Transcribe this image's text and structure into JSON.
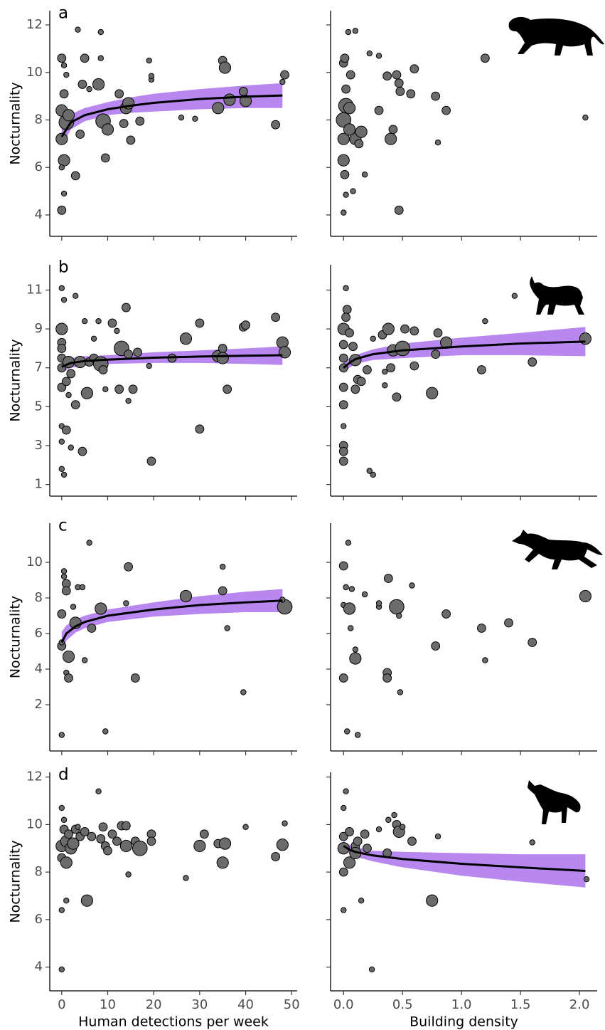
{
  "chart_data": [
    {
      "type": "scatter",
      "panel_label": "a",
      "ylabel": "Nocturnality",
      "xlim": [
        -2.6,
        51.2
      ],
      "ylim": [
        3.1,
        12.6
      ],
      "xticks": [
        0,
        10,
        20,
        30,
        40,
        50
      ],
      "yticks": [
        4,
        6,
        8,
        10,
        12
      ],
      "color": "#6b6b6b",
      "x": [
        0,
        0,
        0,
        0.5,
        0.5,
        0,
        1,
        0.5,
        0,
        0.5,
        1.5,
        1,
        3,
        3.5,
        4,
        4.5,
        5,
        6,
        8,
        8.5,
        8.5,
        9,
        10,
        9.5,
        12.5,
        13.5,
        14,
        14.5,
        15,
        17,
        19,
        19.5,
        19.5,
        26,
        29,
        34,
        35,
        35.5,
        36.5,
        39.5,
        40,
        46.5,
        48.5,
        48
      ],
      "values": [
        7.2,
        4.2,
        10.6,
        10.3,
        9.1,
        8.4,
        7.9,
        6.3,
        6.0,
        4.9,
        8.2,
        9.9,
        5.65,
        11.8,
        7.4,
        9.5,
        10.6,
        9.3,
        9.5,
        11.7,
        10.6,
        7.95,
        7.6,
        6.4,
        9.1,
        7.85,
        8.5,
        8.7,
        7.15,
        7.95,
        10.5,
        9.7,
        9.85,
        8.1,
        8.05,
        8.5,
        10.5,
        10.2,
        8.85,
        9.2,
        8.8,
        7.8,
        9.9,
        9.6
      ],
      "sizes": [
        3,
        2,
        2,
        1,
        2,
        3,
        4,
        3,
        1,
        1,
        3,
        1,
        2,
        1,
        2,
        2,
        2,
        1,
        3,
        1,
        1,
        4,
        3,
        2,
        2,
        2,
        3,
        3,
        2,
        2,
        1,
        1,
        1,
        1,
        1,
        3,
        2,
        3,
        3,
        2,
        3,
        2,
        2,
        1
      ],
      "fit": {
        "line_color": "#000000",
        "band_color": "#b987f0",
        "x": [
          0,
          2,
          5,
          10,
          15,
          20,
          30,
          40,
          48
        ],
        "y": [
          7.3,
          7.9,
          8.2,
          8.45,
          8.6,
          8.72,
          8.88,
          8.98,
          9.03
        ],
        "lower": [
          6.9,
          7.6,
          7.95,
          8.2,
          8.3,
          8.35,
          8.45,
          8.5,
          8.5
        ],
        "upper": [
          7.8,
          8.25,
          8.5,
          8.75,
          8.95,
          9.1,
          9.3,
          9.45,
          9.55
        ]
      }
    },
    {
      "type": "scatter",
      "xlim": [
        -0.11,
        2.15
      ],
      "ylim": [
        3.1,
        12.6
      ],
      "xticks": [
        0,
        0.5,
        1,
        1.5,
        2
      ],
      "yticks": [
        4,
        6,
        8,
        10,
        12
      ],
      "color": "#6b6b6b",
      "x": [
        0,
        0,
        0.02,
        0.05,
        0,
        0.01,
        0,
        0.02,
        0.01,
        0,
        0.04,
        0.1,
        0.06,
        0.1,
        0.13,
        0.15,
        0.08,
        0.18,
        0.22,
        0.3,
        0.3,
        0.37,
        0.4,
        0.42,
        0.45,
        0.47,
        0.48,
        0.47,
        0.57,
        0.6,
        0.78,
        0.8,
        0.87,
        1.2,
        2.05,
        0.02,
        0.05
      ],
      "values": [
        7.2,
        8.0,
        8.6,
        8.5,
        10.4,
        10.6,
        6.3,
        4.85,
        5.7,
        4.1,
        11.7,
        11.75,
        9.9,
        7.2,
        7.0,
        7.5,
        5.0,
        5.7,
        10.8,
        8.4,
        10.7,
        9.85,
        7.2,
        7.6,
        9.9,
        9.55,
        9.2,
        4.2,
        9.1,
        10.15,
        9.0,
        7.05,
        8.4,
        10.6,
        8.1,
        9.3,
        7.6
      ],
      "sizes": [
        3,
        4,
        4,
        3,
        2,
        2,
        3,
        1,
        2,
        1,
        1,
        1,
        2,
        3,
        2,
        3,
        1,
        1,
        1,
        2,
        1,
        2,
        3,
        2,
        2,
        2,
        2,
        2,
        2,
        2,
        2,
        1,
        2,
        2,
        1,
        2,
        3
      ]
    },
    {
      "type": "scatter",
      "panel_label": "b",
      "ylabel": "Nocturnality",
      "xlim": [
        -2.6,
        51.2
      ],
      "ylim": [
        0.4,
        12.3
      ],
      "xticks": [
        0,
        10,
        20,
        30,
        40,
        50
      ],
      "yticks": [
        1,
        3,
        5,
        7,
        9,
        11
      ],
      "color": "#6b6b6b",
      "x": [
        0,
        0,
        0,
        0,
        0,
        0,
        0,
        0,
        0,
        0.5,
        0,
        0.5,
        1,
        1,
        1.5,
        1.5,
        2,
        2,
        3,
        3,
        4,
        4.5,
        5,
        5.5,
        6,
        7,
        7,
        8,
        8.5,
        9,
        9.5,
        11,
        12,
        12.5,
        13,
        14,
        14.5,
        14.5,
        15.5,
        16.5,
        19,
        19.5,
        24,
        27,
        30,
        30,
        34,
        35,
        35,
        36,
        39.5,
        40,
        46.5,
        48,
        48.5
      ],
      "values": [
        9.0,
        8.3,
        8.0,
        7.5,
        7.0,
        6.0,
        4.0,
        3.2,
        1.8,
        1.5,
        11.1,
        10.5,
        6.3,
        3.8,
        5.6,
        7.3,
        6.7,
        2.9,
        10.7,
        5.1,
        7.3,
        2.7,
        9.4,
        5.7,
        7.3,
        8.5,
        7.5,
        9.4,
        7.2,
        6.9,
        5.9,
        9.3,
        8.9,
        5.9,
        8.0,
        10.1,
        7.7,
        5.3,
        5.9,
        7.8,
        7.1,
        2.2,
        7.5,
        8.5,
        9.3,
        3.85,
        7.6,
        8.0,
        7.5,
        5.9,
        9.1,
        9.2,
        9.6,
        8.3,
        7.8
      ],
      "sizes": [
        3,
        2,
        2,
        2,
        2,
        2,
        1,
        1,
        1,
        1,
        1,
        1,
        2,
        2,
        1,
        3,
        2,
        1,
        1,
        2,
        3,
        2,
        1,
        3,
        2,
        1,
        2,
        1,
        4,
        2,
        1,
        2,
        1,
        2,
        4,
        2,
        2,
        1,
        2,
        2,
        1,
        2,
        2,
        3,
        2,
        2,
        3,
        2,
        3,
        2,
        2,
        2,
        2,
        3,
        3
      ],
      "fit": {
        "line_color": "#000000",
        "band_color": "#b987f0",
        "x": [
          0,
          2,
          5,
          10,
          20,
          30,
          40,
          48
        ],
        "y": [
          7.05,
          7.25,
          7.35,
          7.42,
          7.52,
          7.58,
          7.62,
          7.65
        ],
        "lower": [
          6.75,
          7.0,
          7.1,
          7.2,
          7.25,
          7.25,
          7.2,
          7.15
        ],
        "upper": [
          7.4,
          7.5,
          7.6,
          7.65,
          7.8,
          7.9,
          8.0,
          8.1
        ]
      }
    },
    {
      "type": "scatter",
      "xlim": [
        -0.11,
        2.15
      ],
      "ylim": [
        0.4,
        12.3
      ],
      "xticks": [
        0,
        0.5,
        1,
        1.5,
        2
      ],
      "yticks": [
        1,
        3,
        5,
        7,
        9,
        11
      ],
      "color": "#6b6b6b",
      "x": [
        0,
        0,
        0,
        0,
        0,
        0,
        0,
        0,
        0,
        0,
        0.02,
        0.03,
        0.02,
        0.05,
        0.08,
        0.1,
        0.12,
        0.15,
        0.1,
        0.2,
        0.22,
        0.25,
        0.25,
        0.33,
        0.35,
        0.35,
        0.38,
        0.4,
        0.42,
        0.45,
        0.5,
        0.52,
        0.6,
        0.6,
        0.75,
        0.78,
        0.8,
        0.87,
        1.17,
        1.2,
        1.45,
        1.6,
        2.05
      ],
      "values": [
        9.0,
        8.2,
        7.5,
        7.0,
        6.0,
        5.1,
        4.0,
        3.0,
        2.7,
        2.2,
        11.1,
        10.0,
        9.6,
        8.8,
        8.1,
        7.4,
        6.4,
        6.3,
        5.9,
        6.9,
        1.7,
        1.5,
        8.5,
        8.7,
        6.8,
        6.1,
        9.0,
        7.0,
        7.9,
        5.5,
        8.0,
        9.0,
        8.9,
        7.1,
        5.7,
        7.7,
        8.8,
        8.3,
        6.9,
        9.4,
        10.7,
        7.3,
        8.5
      ],
      "sizes": [
        3,
        2,
        2,
        2,
        2,
        2,
        1,
        2,
        2,
        2,
        1,
        2,
        2,
        2,
        2,
        3,
        2,
        2,
        2,
        2,
        1,
        1,
        1,
        2,
        1,
        1,
        3,
        2,
        3,
        2,
        4,
        2,
        2,
        2,
        3,
        2,
        2,
        3,
        2,
        1,
        1,
        2,
        3
      ],
      "fit": {
        "line_color": "#000000",
        "band_color": "#b987f0",
        "x": [
          0,
          0.05,
          0.1,
          0.25,
          0.5,
          1,
          1.5,
          2.05
        ],
        "y": [
          7.0,
          7.25,
          7.45,
          7.7,
          7.9,
          8.1,
          8.25,
          8.35
        ],
        "lower": [
          6.7,
          7.0,
          7.2,
          7.4,
          7.5,
          7.65,
          7.65,
          7.6
        ],
        "upper": [
          7.3,
          7.5,
          7.65,
          7.95,
          8.25,
          8.55,
          8.8,
          9.1
        ]
      }
    },
    {
      "type": "scatter",
      "panel_label": "c",
      "ylabel": "Nocturnality",
      "xlim": [
        -2.6,
        51.2
      ],
      "ylim": [
        -0.6,
        12.2
      ],
      "xticks": [
        0,
        10,
        20,
        30,
        40,
        50
      ],
      "yticks": [
        2,
        4,
        6,
        8,
        10
      ],
      "color": "#6b6b6b",
      "x": [
        0,
        0,
        0,
        0,
        0.5,
        0.5,
        1,
        1,
        1.5,
        1.5,
        1,
        2.5,
        3,
        3.5,
        4.5,
        5,
        6,
        6.5,
        8.5,
        9.5,
        14,
        14.5,
        16,
        27,
        35,
        35,
        36,
        39.5,
        48.5,
        48
      ],
      "values": [
        5.3,
        5.5,
        7.1,
        0.3,
        9.5,
        9.2,
        8.8,
        3.8,
        4.7,
        3.5,
        8.4,
        7.5,
        6.6,
        8.6,
        8.6,
        4.5,
        11.1,
        6.3,
        7.4,
        0.5,
        7.7,
        9.75,
        3.5,
        8.1,
        9.75,
        8.4,
        6.3,
        2.7,
        7.5,
        7.9
      ],
      "sizes": [
        2,
        1,
        2,
        1,
        1,
        1,
        2,
        1,
        3,
        2,
        2,
        1,
        3,
        1,
        1,
        1,
        1,
        2,
        3,
        1,
        1,
        2,
        2,
        3,
        1,
        2,
        1,
        1,
        4,
        1
      ],
      "fit": {
        "line_color": "#000000",
        "band_color": "#b987f0",
        "x": [
          0,
          1,
          3,
          5,
          10,
          20,
          30,
          40,
          48
        ],
        "y": [
          5.5,
          6.0,
          6.4,
          6.65,
          7.0,
          7.35,
          7.6,
          7.75,
          7.85
        ],
        "lower": [
          4.9,
          5.6,
          6.05,
          6.3,
          6.65,
          6.95,
          7.1,
          7.2,
          7.2
        ],
        "upper": [
          6.1,
          6.45,
          6.8,
          7.0,
          7.35,
          7.75,
          8.1,
          8.35,
          8.5
        ]
      }
    },
    {
      "type": "scatter",
      "xlim": [
        -0.11,
        2.15
      ],
      "ylim": [
        -0.6,
        12.2
      ],
      "xticks": [
        0,
        0.5,
        1,
        1.5,
        2
      ],
      "yticks": [
        2,
        4,
        6,
        8,
        10
      ],
      "color": "#6b6b6b",
      "x": [
        0,
        0,
        0,
        0.02,
        0.05,
        0.03,
        0.04,
        0.06,
        0.07,
        0.1,
        0.1,
        0.12,
        0.18,
        0.3,
        0.3,
        0.37,
        0.37,
        0.38,
        0.45,
        0.47,
        0.48,
        0.58,
        0.78,
        0.87,
        1.17,
        1.2,
        1.4,
        1.6,
        2.05
      ],
      "values": [
        3.5,
        7.6,
        9.8,
        8.6,
        7.4,
        0.5,
        11.1,
        6.3,
        8.5,
        5.1,
        4.6,
        0.3,
        8.2,
        7.5,
        7.7,
        3.8,
        3.5,
        9.1,
        7.5,
        7.0,
        2.7,
        8.7,
        5.3,
        7.1,
        6.3,
        4.5,
        6.6,
        5.5,
        8.1
      ],
      "sizes": [
        2,
        1,
        2,
        1,
        3,
        1,
        1,
        1,
        1,
        1,
        3,
        1,
        1,
        1,
        1,
        2,
        2,
        2,
        4,
        1,
        1,
        1,
        2,
        2,
        2,
        1,
        2,
        2,
        3
      ]
    },
    {
      "type": "scatter",
      "panel_label": "d",
      "ylabel": "Nocturnality",
      "xlabel": "Human detections per week",
      "xlim": [
        -2.6,
        51.2
      ],
      "ylim": [
        3.0,
        12.2
      ],
      "xticks": [
        0,
        10,
        20,
        30,
        40,
        50
      ],
      "yticks": [
        4,
        6,
        8,
        10,
        12
      ],
      "color": "#6b6b6b",
      "x": [
        0,
        0,
        0,
        0,
        0,
        0.5,
        0.5,
        1,
        1,
        1,
        1.5,
        2,
        2.5,
        3,
        3.5,
        4,
        5,
        5.5,
        6.5,
        8,
        8.5,
        9,
        9.5,
        10,
        11,
        12,
        13,
        14,
        14.5,
        14,
        16,
        17,
        19.5,
        19.5,
        27,
        30,
        31,
        34,
        35,
        35.5,
        40,
        46.5,
        48,
        48.5
      ],
      "values": [
        9.1,
        8.6,
        10.7,
        6.4,
        3.9,
        9.8,
        10.2,
        9.3,
        8.4,
        6.8,
        9.6,
        9.0,
        9.2,
        9.8,
        9.9,
        9.5,
        9.7,
        6.8,
        9.5,
        11.4,
        9.4,
        9.9,
        9.1,
        8.9,
        9.6,
        9.3,
        9.95,
        9.1,
        7.9,
        9.95,
        9.3,
        9.0,
        9.6,
        9.3,
        7.75,
        9.1,
        9.6,
        9.2,
        8.4,
        9.2,
        9.9,
        8.65,
        9.15,
        10.05
      ],
      "sizes": [
        3,
        2,
        1,
        1,
        1,
        2,
        1,
        3,
        3,
        1,
        2,
        3,
        3,
        2,
        1,
        2,
        2,
        3,
        2,
        1,
        2,
        2,
        2,
        2,
        2,
        2,
        2,
        3,
        1,
        2,
        2,
        4,
        2,
        2,
        1,
        3,
        2,
        2,
        3,
        3,
        1,
        2,
        3,
        1
      ]
    },
    {
      "type": "scatter",
      "xlabel": "Building density",
      "xlim": [
        -0.11,
        2.15
      ],
      "ylim": [
        3.0,
        12.2
      ],
      "xticks": [
        {
          "value": 0,
          "label": "0.0"
        },
        0.5,
        {
          "value": 1,
          "label": "1.0"
        },
        1.5,
        {
          "value": 2,
          "label": "2.0"
        }
      ],
      "yticks": [
        4,
        6,
        8,
        10,
        12
      ],
      "color": "#6b6b6b",
      "x": [
        0,
        0,
        0,
        0,
        0,
        0.02,
        0.05,
        0.05,
        0.1,
        0.1,
        0.12,
        0.15,
        0.18,
        0.2,
        0.24,
        0.3,
        0.37,
        0.38,
        0.43,
        0.45,
        0.47,
        0.5,
        0.58,
        0.75,
        0.8,
        1.6,
        2.06
      ],
      "values": [
        9.0,
        9.5,
        8.0,
        10.7,
        6.4,
        11.4,
        9.7,
        8.4,
        9.1,
        8.8,
        9.3,
        6.8,
        9.6,
        9.0,
        3.9,
        9.8,
        8.8,
        10.2,
        10.4,
        10.0,
        9.7,
        9.9,
        9.3,
        6.8,
        9.5,
        9.25,
        7.7
      ],
      "sizes": [
        3,
        2,
        2,
        1,
        1,
        1,
        2,
        3,
        2,
        3,
        2,
        1,
        2,
        2,
        1,
        1,
        2,
        1,
        1,
        2,
        3,
        1,
        2,
        3,
        1,
        1,
        1
      ],
      "fit": {
        "line_color": "#000000",
        "band_color": "#b987f0",
        "x": [
          0,
          0.05,
          0.1,
          0.25,
          0.5,
          1,
          1.5,
          2.05
        ],
        "y": [
          9.1,
          8.95,
          8.85,
          8.7,
          8.55,
          8.35,
          8.2,
          8.05
        ],
        "lower": [
          8.95,
          8.8,
          8.65,
          8.45,
          8.2,
          7.85,
          7.6,
          7.35
        ],
        "upper": [
          9.3,
          9.15,
          9.05,
          8.9,
          8.85,
          8.8,
          8.75,
          8.75
        ]
      }
    }
  ]
}
